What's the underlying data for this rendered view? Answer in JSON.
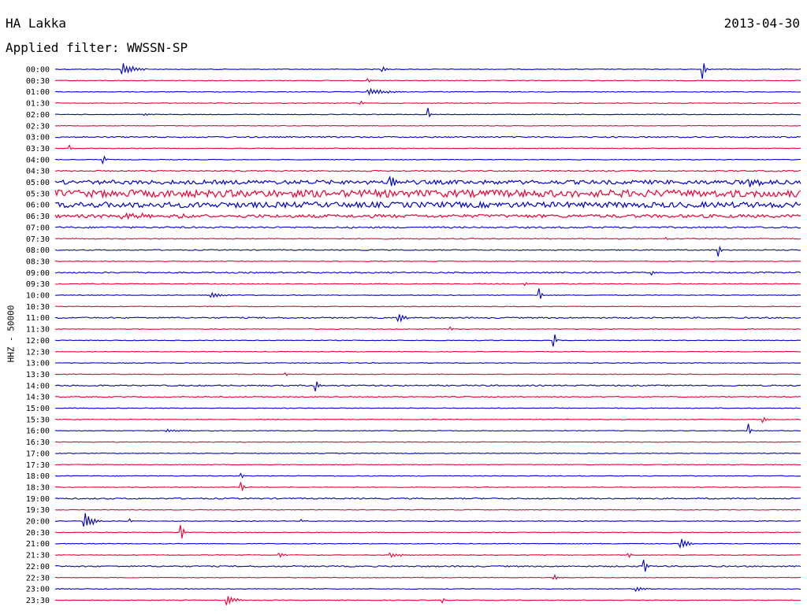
{
  "header": {
    "station": "HA Lakka",
    "date": "2013-04-30",
    "filter": "Applied filter: WWSSN-SP"
  },
  "chart_data": {
    "type": "line",
    "chart_kind": "helicorder",
    "ylabel": "HHZ - 50000",
    "rows": [
      "00:00",
      "00:30",
      "01:00",
      "01:30",
      "02:00",
      "02:30",
      "03:00",
      "03:30",
      "04:00",
      "04:30",
      "05:00",
      "05:30",
      "06:00",
      "06:30",
      "07:00",
      "07:30",
      "08:00",
      "08:30",
      "09:00",
      "09:30",
      "10:00",
      "10:30",
      "11:00",
      "11:30",
      "12:00",
      "12:30",
      "13:00",
      "13:30",
      "14:00",
      "14:30",
      "15:00",
      "15:30",
      "16:00",
      "16:30",
      "17:00",
      "17:30",
      "18:00",
      "18:30",
      "19:00",
      "19:30",
      "20:00",
      "20:30",
      "21:00",
      "21:30",
      "22:00",
      "22:30",
      "23:00",
      "23:30"
    ],
    "row_colors": [
      "#0000cc",
      "#ee0033"
    ],
    "noise_levels": [
      0.4,
      0.4,
      0.4,
      0.4,
      0.4,
      0.4,
      0.8,
      0.4,
      0.4,
      0.8,
      2.5,
      4.5,
      3.5,
      2.0,
      1.0,
      0.6,
      0.6,
      0.4,
      0.8,
      0.5,
      0.4,
      0.4,
      0.8,
      0.4,
      0.4,
      0.4,
      0.4,
      0.4,
      0.8,
      0.6,
      0.4,
      0.4,
      0.4,
      0.4,
      0.4,
      0.4,
      0.4,
      0.4,
      0.8,
      0.4,
      0.4,
      0.4,
      0.4,
      0.4,
      0.8,
      0.4,
      0.4,
      0.4
    ],
    "events": [
      {
        "row": 0,
        "t": 0.09,
        "amp": 9,
        "dur": 0.03
      },
      {
        "row": 0,
        "t": 0.87,
        "amp": 12,
        "dur": 0.004
      },
      {
        "row": 0,
        "t": 0.44,
        "amp": 3,
        "dur": 0.01
      },
      {
        "row": 1,
        "t": 0.42,
        "amp": 3,
        "dur": 0.004
      },
      {
        "row": 2,
        "t": 0.42,
        "amp": 4,
        "dur": 0.05
      },
      {
        "row": 3,
        "t": 0.41,
        "amp": 3,
        "dur": 0.004
      },
      {
        "row": 4,
        "t": 0.12,
        "amp": 2,
        "dur": 0.01
      },
      {
        "row": 4,
        "t": 0.5,
        "amp": 10,
        "dur": 0.003
      },
      {
        "row": 7,
        "t": 0.02,
        "amp": 4,
        "dur": 0.004
      },
      {
        "row": 8,
        "t": 0.065,
        "amp": 8,
        "dur": 0.004
      },
      {
        "row": 10,
        "t": 0.45,
        "amp": 7,
        "dur": 0.02
      },
      {
        "row": 10,
        "t": 0.93,
        "amp": 6,
        "dur": 0.03
      },
      {
        "row": 13,
        "t": 0.09,
        "amp": 3,
        "dur": 0.12
      },
      {
        "row": 15,
        "t": 0.82,
        "amp": 3,
        "dur": 0.004
      },
      {
        "row": 16,
        "t": 0.89,
        "amp": 10,
        "dur": 0.004
      },
      {
        "row": 18,
        "t": 0.8,
        "amp": 4,
        "dur": 0.008
      },
      {
        "row": 19,
        "t": 0.63,
        "amp": 4,
        "dur": 0.004
      },
      {
        "row": 20,
        "t": 0.21,
        "amp": 4,
        "dur": 0.02
      },
      {
        "row": 20,
        "t": 0.65,
        "amp": 10,
        "dur": 0.004
      },
      {
        "row": 22,
        "t": 0.46,
        "amp": 6,
        "dur": 0.015
      },
      {
        "row": 23,
        "t": 0.53,
        "amp": 3,
        "dur": 0.004
      },
      {
        "row": 24,
        "t": 0.67,
        "amp": 10,
        "dur": 0.004
      },
      {
        "row": 27,
        "t": 0.31,
        "amp": 3,
        "dur": 0.004
      },
      {
        "row": 28,
        "t": 0.35,
        "amp": 11,
        "dur": 0.004
      },
      {
        "row": 31,
        "t": 0.95,
        "amp": 4,
        "dur": 0.01
      },
      {
        "row": 32,
        "t": 0.15,
        "amp": 2,
        "dur": 0.04
      },
      {
        "row": 32,
        "t": 0.93,
        "amp": 10,
        "dur": 0.004
      },
      {
        "row": 36,
        "t": 0.25,
        "amp": 5,
        "dur": 0.004
      },
      {
        "row": 37,
        "t": 0.25,
        "amp": 11,
        "dur": 0.004
      },
      {
        "row": 40,
        "t": 0.04,
        "amp": 11,
        "dur": 0.02
      },
      {
        "row": 40,
        "t": 0.1,
        "amp": 4,
        "dur": 0.004
      },
      {
        "row": 40,
        "t": 0.33,
        "amp": 2,
        "dur": 0.008
      },
      {
        "row": 41,
        "t": 0.17,
        "amp": 12,
        "dur": 0.004
      },
      {
        "row": 42,
        "t": 0.84,
        "amp": 9,
        "dur": 0.015
      },
      {
        "row": 43,
        "t": 0.3,
        "amp": 4,
        "dur": 0.01
      },
      {
        "row": 43,
        "t": 0.45,
        "amp": 3,
        "dur": 0.03
      },
      {
        "row": 43,
        "t": 0.77,
        "amp": 3,
        "dur": 0.004
      },
      {
        "row": 44,
        "t": 0.79,
        "amp": 12,
        "dur": 0.006
      },
      {
        "row": 45,
        "t": 0.67,
        "amp": 3,
        "dur": 0.01
      },
      {
        "row": 46,
        "t": 0.78,
        "amp": 3,
        "dur": 0.02
      },
      {
        "row": 47,
        "t": 0.23,
        "amp": 7,
        "dur": 0.02
      },
      {
        "row": 47,
        "t": 0.52,
        "amp": 4,
        "dur": 0.004
      }
    ]
  }
}
